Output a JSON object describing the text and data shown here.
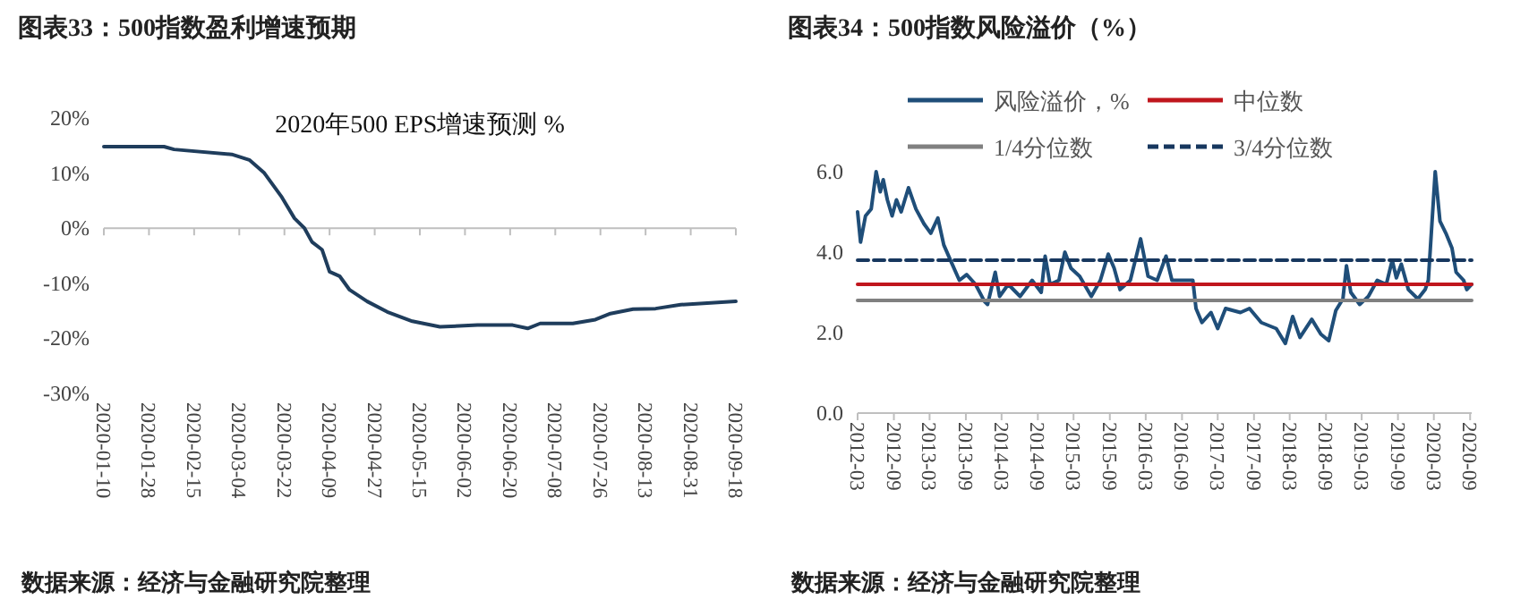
{
  "chart_data": [
    {
      "type": "line",
      "title": "图表33：500指数盈利增速预期",
      "subtitle": "2020年500 EPS增速预测 %",
      "x": [
        "2020-01-10",
        "2020-02-03",
        "2020-02-07",
        "2020-03-01",
        "2020-03-08",
        "2020-03-14",
        "2020-03-21",
        "2020-03-26",
        "2020-03-30",
        "2020-04-02",
        "2020-04-06",
        "2020-04-09",
        "2020-04-13",
        "2020-04-17",
        "2020-04-24",
        "2020-05-02",
        "2020-05-12",
        "2020-05-23",
        "2020-06-07",
        "2020-06-21",
        "2020-06-27",
        "2020-07-02",
        "2020-07-15",
        "2020-07-24",
        "2020-07-30",
        "2020-08-08",
        "2020-08-17",
        "2020-08-27",
        "2020-09-18"
      ],
      "series": [
        {
          "color": "#1f3d5c",
          "values": [
            14.8,
            14.8,
            14.3,
            13.4,
            12.4,
            10.0,
            5.6,
            1.8,
            0,
            -2.5,
            -3.9,
            -7.9,
            -8.7,
            -11.2,
            -13.3,
            -15.2,
            -16.9,
            -17.9,
            -17.6,
            -17.6,
            -18.2,
            -17.3,
            -17.3,
            -16.6,
            -15.5,
            -14.7,
            -14.6,
            -13.9,
            -13.3
          ]
        }
      ],
      "xlim": [
        "2020-01-10",
        "2020-09-18"
      ],
      "xticks": [
        "2020-01-10",
        "2020-01-28",
        "2020-02-15",
        "2020-03-04",
        "2020-03-22",
        "2020-04-09",
        "2020-04-27",
        "2020-05-15",
        "2020-06-02",
        "2020-06-20",
        "2020-07-08",
        "2020-07-26",
        "2020-08-13",
        "2020-08-31",
        "2020-09-18"
      ],
      "ylim": [
        -30,
        20
      ],
      "yticks": [
        {
          "value": -30,
          "label": "-30%"
        },
        {
          "value": -20,
          "label": "-20%"
        },
        {
          "value": -10,
          "label": "-10%"
        },
        {
          "value": 0,
          "label": "0%"
        },
        {
          "value": 10,
          "label": "10%"
        },
        {
          "value": 20,
          "label": "20%"
        }
      ],
      "annotations": [
        "数据来源：经济与金融研究院整理"
      ]
    },
    {
      "type": "line",
      "title": "图表34：500指数风险溢价（%）",
      "legend": "top",
      "series": [
        {
          "name": "风险溢价，%",
          "color": "#1f4e79",
          "x": [
            "2012-03-01",
            "2012-03-16",
            "2012-04-10",
            "2012-05-09",
            "2012-06-03",
            "2012-06-24",
            "2012-07-09",
            "2012-07-30",
            "2012-08-23",
            "2012-09-14",
            "2012-10-08",
            "2012-11-14",
            "2012-12-22",
            "2013-02-01",
            "2013-03-07",
            "2013-04-12",
            "2013-05-12",
            "2013-06-21",
            "2013-07-30",
            "2013-09-05",
            "2013-10-20",
            "2013-12-05",
            "2013-12-20",
            "2014-01-28",
            "2014-02-19",
            "2014-04-04",
            "2014-06-03",
            "2014-08-03",
            "2014-09-18",
            "2014-10-08",
            "2014-11-02",
            "2014-12-17",
            "2015-01-16",
            "2015-02-16",
            "2015-04-01",
            "2015-05-30",
            "2015-07-15",
            "2015-08-24",
            "2015-09-23",
            "2015-10-23",
            "2015-12-14",
            "2016-02-04",
            "2016-03-13",
            "2016-04-28",
            "2016-06-12",
            "2016-07-12",
            "2016-09-26",
            "2016-10-26",
            "2016-11-11",
            "2016-12-11",
            "2017-01-26",
            "2017-03-01",
            "2017-04-10",
            "2017-06-24",
            "2017-08-09",
            "2017-10-08",
            "2017-12-23",
            "2018-02-07",
            "2018-03-16",
            "2018-04-22",
            "2018-06-21",
            "2018-08-06",
            "2018-09-15",
            "2018-10-21",
            "2018-11-26",
            "2018-12-14",
            "2019-01-05",
            "2019-02-19",
            "2019-04-04",
            "2019-05-19",
            "2019-07-04",
            "2019-08-03",
            "2019-08-24",
            "2019-09-18",
            "2019-10-24",
            "2019-12-11",
            "2020-01-17",
            "2020-02-02",
            "2020-03-08",
            "2020-04-01",
            "2020-05-01",
            "2020-06-01",
            "2020-06-22",
            "2020-07-30",
            "2020-08-15",
            "2020-09-09"
          ],
          "values": [
            5.0,
            4.25,
            4.9,
            5.07,
            6.0,
            5.5,
            5.8,
            5.3,
            4.9,
            5.3,
            5.0,
            5.6,
            5.07,
            4.7,
            4.47,
            4.85,
            4.18,
            3.73,
            3.3,
            3.44,
            3.2,
            2.77,
            2.7,
            3.5,
            2.9,
            3.2,
            2.9,
            3.3,
            3.0,
            3.9,
            3.2,
            3.3,
            4.0,
            3.6,
            3.4,
            2.9,
            3.3,
            3.95,
            3.6,
            3.07,
            3.3,
            4.33,
            3.4,
            3.3,
            3.9,
            3.3,
            3.3,
            3.3,
            2.6,
            2.25,
            2.5,
            2.1,
            2.6,
            2.5,
            2.6,
            2.25,
            2.1,
            1.73,
            2.4,
            1.88,
            2.33,
            1.96,
            1.8,
            2.55,
            2.84,
            3.66,
            3.0,
            2.7,
            2.9,
            3.3,
            3.2,
            3.8,
            3.36,
            3.7,
            3.07,
            2.84,
            3.07,
            3.3,
            6.0,
            4.77,
            4.47,
            4.1,
            3.5,
            3.3,
            3.07,
            3.2
          ]
        },
        {
          "name": "中位数",
          "color": "#c0161d",
          "x": [
            "2012-03-01",
            "2020-09-09"
          ],
          "values": [
            3.2,
            3.2
          ]
        },
        {
          "name": "1/4分位数",
          "color": "#808080",
          "x": [
            "2012-03-01",
            "2020-09-09"
          ],
          "values": [
            2.8,
            2.8
          ]
        },
        {
          "name": "3/4分位数",
          "color": "#17375e",
          "line_style": "dashed",
          "x": [
            "2012-03-01",
            "2020-09-09"
          ],
          "values": [
            3.8,
            3.8
          ]
        }
      ],
      "xlim": [
        "2012-03-01",
        "2020-09-09"
      ],
      "xticks": [
        "2012-03",
        "2012-09",
        "2013-03",
        "2013-09",
        "2014-03",
        "2014-09",
        "2015-03",
        "2015-09",
        "2016-03",
        "2016-09",
        "2017-03",
        "2017-09",
        "2018-03",
        "2018-09",
        "2019-03",
        "2019-09",
        "2020-03",
        "2020-09"
      ],
      "ylim": [
        0,
        6
      ],
      "yticks": [
        {
          "value": 0,
          "label": "0.0"
        },
        {
          "value": 2,
          "label": "2.0"
        },
        {
          "value": 4,
          "label": "4.0"
        },
        {
          "value": 6,
          "label": "6.0"
        }
      ],
      "annotations": [
        "数据来源：经济与金融研究院整理"
      ]
    }
  ]
}
